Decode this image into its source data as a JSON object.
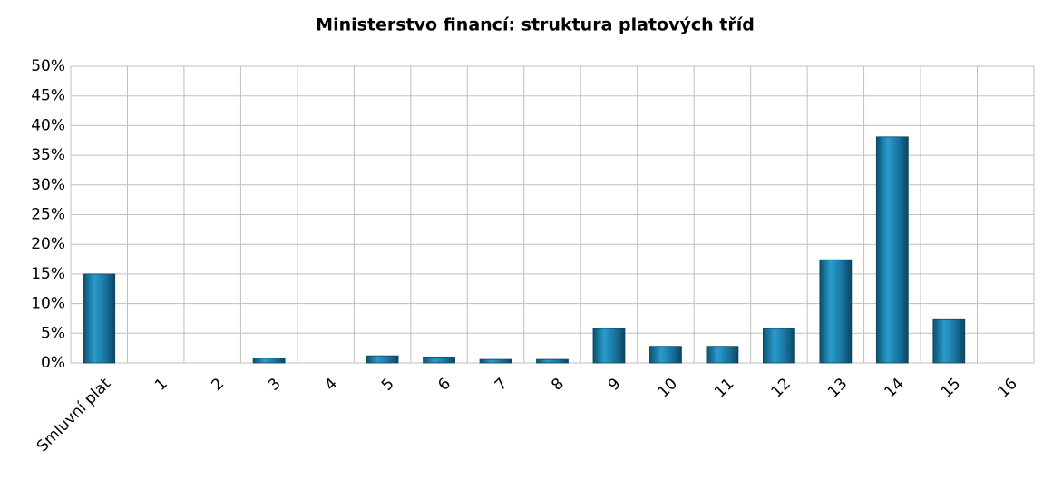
{
  "chart_data": {
    "type": "bar",
    "title": "Ministerstvo financí: struktura platových tříd",
    "categories": [
      "Smluvní plat",
      "1",
      "2",
      "3",
      "4",
      "5",
      "6",
      "7",
      "8",
      "9",
      "10",
      "11",
      "12",
      "13",
      "14",
      "15",
      "16"
    ],
    "values": [
      15,
      0,
      0,
      0.8,
      0,
      1.2,
      1,
      0.6,
      0.6,
      5.8,
      2.8,
      2.8,
      5.8,
      17.4,
      38.1,
      7.3,
      0
    ],
    "color": "#1a7aa6",
    "ylim": [
      0,
      50
    ],
    "yticks": [
      {
        "value": 0,
        "label": "0%"
      },
      {
        "value": 5,
        "label": "5%"
      },
      {
        "value": 10,
        "label": "10%"
      },
      {
        "value": 15,
        "label": "15%"
      },
      {
        "value": 20,
        "label": "20%"
      },
      {
        "value": 25,
        "label": "25%"
      },
      {
        "value": 30,
        "label": "30%"
      },
      {
        "value": 35,
        "label": "35%"
      },
      {
        "value": 40,
        "label": "40%"
      },
      {
        "value": 45,
        "label": "45%"
      },
      {
        "value": 50,
        "label": "50%"
      }
    ],
    "grid": true
  }
}
